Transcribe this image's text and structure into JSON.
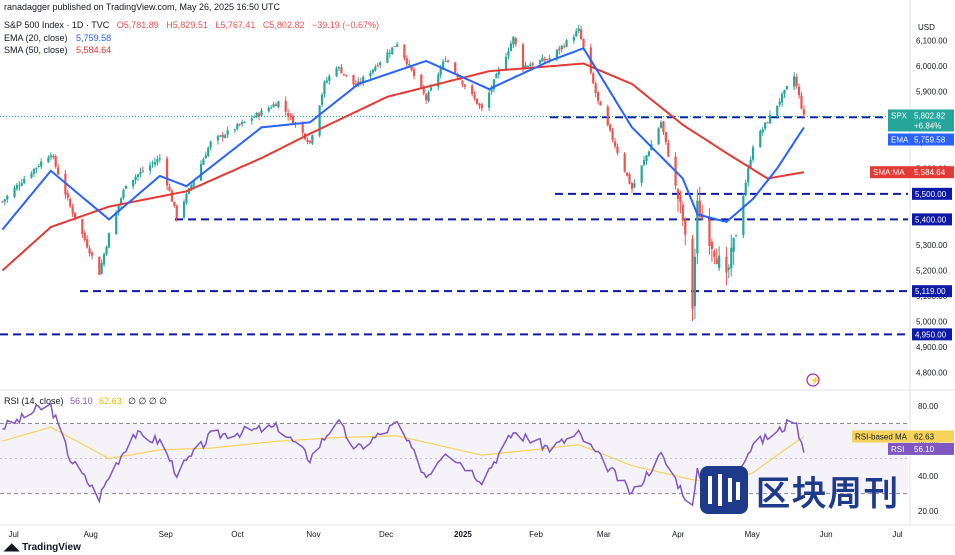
{
  "header": {
    "publisher_line": "ranadagger published on TradingView.com, May 26, 2025 16:50 UTC",
    "symbol_line": "S&P 500 Index · 1D · TVC",
    "open": "O5,781.89",
    "high": "H5,829.51",
    "low": "L5,767.41",
    "close": "C5,802.82",
    "change": "−39.19 (−0.67%)",
    "ema_label": "EMA (20, close)",
    "ema_value": "5,759.58",
    "sma_label": "SMA (50, close)",
    "sma_value": "5,584.64",
    "rsi_label": "RSI (14, close)",
    "rsi_value": "56.10",
    "rsi_ma_value": "62.63",
    "rsi_extra": "∅ ∅ ∅ ∅"
  },
  "currency": "USD",
  "footer_brand": "TradingView",
  "watermark": "区块周刊",
  "colors": {
    "up": "#26a69a",
    "down": "#ef5350",
    "ema": "#2962ff",
    "sma": "#e53935",
    "rsi": "#7e57c2",
    "rsi_ma": "#f5d35b",
    "support": "#0d1aa8",
    "price_tag": "#26a69a"
  },
  "chart_data": {
    "type": "candlestick",
    "title": "S&P 500 Index · 1D · TVC",
    "y_axis": {
      "range": [
        4740,
        6200
      ],
      "ticks": [
        6100,
        6000,
        5900,
        5800,
        5700,
        5600,
        5500,
        5400,
        5300,
        5200,
        5100,
        5000,
        4900,
        4800
      ],
      "tick_labels": [
        "6,100.00",
        "6,000.00",
        "5,900.00",
        "5,800.00",
        "5,700.00",
        "5,600.00",
        "5,500.00",
        "5,400.00",
        "5,300.00",
        "5,200.00",
        "5,100.00",
        "5,000.00",
        "4,900.00",
        "4,800.00"
      ]
    },
    "x_axis_labels": [
      "Jul",
      "Aug",
      "Sep",
      "Oct",
      "Nov",
      "Dec",
      "2025",
      "Feb",
      "Mar",
      "Apr",
      "May",
      "Jun",
      "Jul"
    ],
    "support_levels": [
      {
        "value": 5800,
        "label": "5,800.00"
      },
      {
        "value": 5500,
        "label": "5,500.00"
      },
      {
        "value": 5400,
        "label": "5,400.00"
      },
      {
        "value": 5119,
        "label": "5,119.00"
      },
      {
        "value": 4950,
        "label": "4,950.00"
      }
    ],
    "price_tag": {
      "name": "SPX",
      "value": "5,802.82",
      "change": "+6.84%"
    },
    "ema_tag": {
      "name": "EMA",
      "value": "5,759.58"
    },
    "sma_tag": {
      "name": "SMA:MA",
      "value": "5,584.64"
    },
    "price_anchors": [
      [
        "2024-06-26",
        5470
      ],
      [
        "2024-07-05",
        5560
      ],
      [
        "2024-07-16",
        5660
      ],
      [
        "2024-07-24",
        5450
      ],
      [
        "2024-08-05",
        5190
      ],
      [
        "2024-08-09",
        5340
      ],
      [
        "2024-08-16",
        5540
      ],
      [
        "2024-08-30",
        5640
      ],
      [
        "2024-09-06",
        5410
      ],
      [
        "2024-09-20",
        5700
      ],
      [
        "2024-10-11",
        5820
      ],
      [
        "2024-10-18",
        5860
      ],
      [
        "2024-10-31",
        5700
      ],
      [
        "2024-11-06",
        5930
      ],
      [
        "2024-11-11",
        6000
      ],
      [
        "2024-11-19",
        5920
      ],
      [
        "2024-12-06",
        6090
      ],
      [
        "2024-12-18",
        5870
      ],
      [
        "2024-12-26",
        6030
      ],
      [
        "2025-01-10",
        5830
      ],
      [
        "2025-01-23",
        6110
      ],
      [
        "2025-01-27",
        6000
      ],
      [
        "2025-02-07",
        6030
      ],
      [
        "2025-02-19",
        6140
      ],
      [
        "2025-02-27",
        5860
      ],
      [
        "2025-03-13",
        5520
      ],
      [
        "2025-03-25",
        5780
      ],
      [
        "2025-04-03",
        5400
      ],
      [
        "2025-04-07",
        5060
      ],
      [
        "2025-04-09",
        5450
      ],
      [
        "2025-04-21",
        5160
      ],
      [
        "2025-05-02",
        5690
      ],
      [
        "2025-05-12",
        5850
      ],
      [
        "2025-05-19",
        5960
      ],
      [
        "2025-05-23",
        5802
      ]
    ],
    "ema20_anchors": [
      [
        "2024-06-26",
        5360
      ],
      [
        "2024-07-16",
        5590
      ],
      [
        "2024-08-09",
        5400
      ],
      [
        "2024-08-30",
        5570
      ],
      [
        "2024-09-10",
        5530
      ],
      [
        "2024-10-11",
        5760
      ],
      [
        "2024-10-31",
        5780
      ],
      [
        "2024-11-20",
        5930
      ],
      [
        "2024-12-18",
        6020
      ],
      [
        "2025-01-13",
        5910
      ],
      [
        "2025-02-07",
        6020
      ],
      [
        "2025-02-21",
        6070
      ],
      [
        "2025-03-13",
        5760
      ],
      [
        "2025-04-03",
        5560
      ],
      [
        "2025-04-09",
        5420
      ],
      [
        "2025-04-21",
        5390
      ],
      [
        "2025-05-02",
        5480
      ],
      [
        "2025-05-12",
        5600
      ],
      [
        "2025-05-23",
        5759.58
      ]
    ],
    "sma50_anchors": [
      [
        "2024-06-26",
        5200
      ],
      [
        "2024-07-16",
        5370
      ],
      [
        "2024-08-09",
        5450
      ],
      [
        "2024-09-10",
        5510
      ],
      [
        "2024-10-11",
        5640
      ],
      [
        "2024-11-01",
        5740
      ],
      [
        "2024-12-02",
        5880
      ],
      [
        "2025-01-13",
        5980
      ],
      [
        "2025-02-21",
        6010
      ],
      [
        "2025-03-13",
        5930
      ],
      [
        "2025-04-03",
        5770
      ],
      [
        "2025-04-21",
        5660
      ],
      [
        "2025-05-08",
        5560
      ],
      [
        "2025-05-23",
        5584.64
      ]
    ],
    "rsi": {
      "range": [
        15,
        88
      ],
      "ticks": [
        80,
        60,
        40,
        20
      ],
      "tick_labels": [
        "80.00",
        "60.00",
        "40.00",
        "20.00"
      ],
      "overbought": 70,
      "oversold": 30,
      "anchors": [
        [
          "2024-06-26",
          68
        ],
        [
          "2024-07-03",
          72
        ],
        [
          "2024-07-10",
          78
        ],
        [
          "2024-07-16",
          80
        ],
        [
          "2024-07-24",
          50
        ],
        [
          "2024-08-05",
          28
        ],
        [
          "2024-08-09",
          40
        ],
        [
          "2024-08-19",
          64
        ],
        [
          "2024-08-30",
          60
        ],
        [
          "2024-09-06",
          42
        ],
        [
          "2024-09-20",
          63
        ],
        [
          "2024-10-18",
          68
        ],
        [
          "2024-10-31",
          50
        ],
        [
          "2024-11-11",
          72
        ],
        [
          "2024-11-19",
          55
        ],
        [
          "2024-12-06",
          70
        ],
        [
          "2024-12-18",
          40
        ],
        [
          "2024-12-26",
          55
        ],
        [
          "2025-01-10",
          38
        ],
        [
          "2025-01-23",
          65
        ],
        [
          "2025-02-07",
          56
        ],
        [
          "2025-02-19",
          64
        ],
        [
          "2025-03-13",
          30
        ],
        [
          "2025-03-25",
          52
        ],
        [
          "2025-04-07",
          22
        ],
        [
          "2025-04-09",
          42
        ],
        [
          "2025-04-21",
          35
        ],
        [
          "2025-05-02",
          58
        ],
        [
          "2025-05-12",
          65
        ],
        [
          "2025-05-19",
          73
        ],
        [
          "2025-05-23",
          56.1
        ]
      ],
      "ma_anchors": [
        [
          "2024-06-26",
          60
        ],
        [
          "2024-07-16",
          68
        ],
        [
          "2024-08-09",
          50
        ],
        [
          "2024-08-30",
          55
        ],
        [
          "2024-09-20",
          56
        ],
        [
          "2024-10-18",
          60
        ],
        [
          "2024-11-11",
          62
        ],
        [
          "2024-12-06",
          63
        ],
        [
          "2025-01-10",
          52
        ],
        [
          "2025-02-07",
          56
        ],
        [
          "2025-02-19",
          58
        ],
        [
          "2025-03-13",
          46
        ],
        [
          "2025-04-07",
          38
        ],
        [
          "2025-04-21",
          36
        ],
        [
          "2025-05-02",
          42
        ],
        [
          "2025-05-12",
          52
        ],
        [
          "2025-05-23",
          62.63
        ]
      ]
    }
  }
}
